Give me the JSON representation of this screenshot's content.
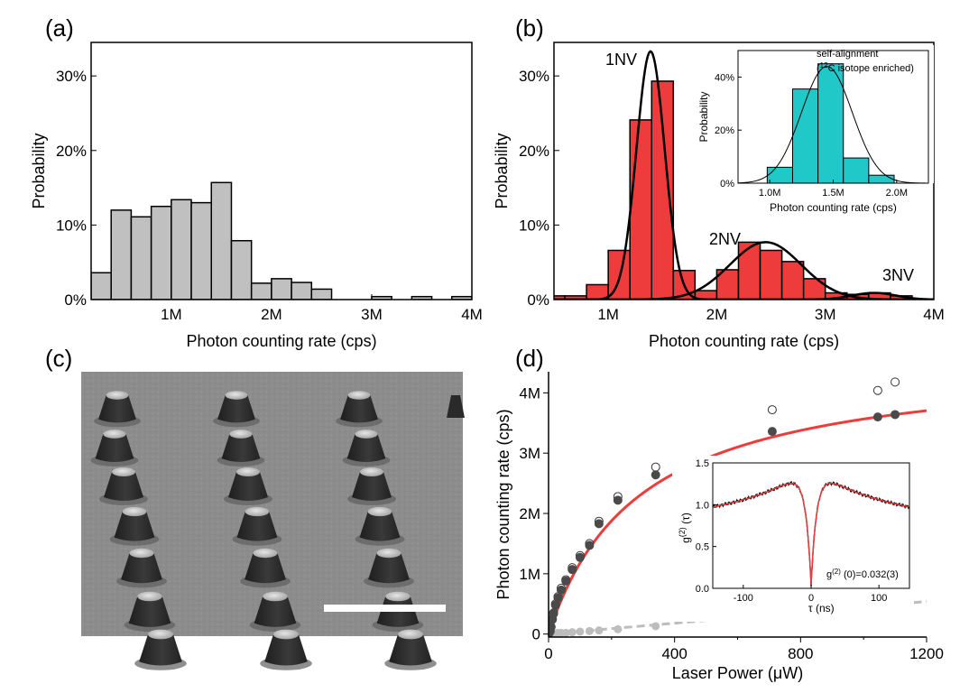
{
  "panel_labels": [
    "(a)",
    "(b)",
    "(c)",
    "(d)"
  ],
  "chart_data": [
    {
      "id": "a",
      "type": "bar",
      "xlabel": "Photon counting rate (cps)",
      "ylabel": "Probability",
      "xlim": [
        0.2,
        4.0
      ],
      "ylim": [
        0,
        0.345
      ],
      "xticks": [
        {
          "v": 1.0,
          "label": "1M"
        },
        {
          "v": 2.0,
          "label": "2M"
        },
        {
          "v": 3.0,
          "label": "3M"
        },
        {
          "v": 4.0,
          "label": "4M"
        }
      ],
      "yticks": [
        {
          "v": 0,
          "label": "0%"
        },
        {
          "v": 0.1,
          "label": "10%"
        },
        {
          "v": 0.2,
          "label": "20%"
        },
        {
          "v": 0.3,
          "label": "30%"
        }
      ],
      "bin_width": 0.2,
      "bin_starts": [
        0.2,
        0.4,
        0.6,
        0.8,
        1.0,
        1.2,
        1.4,
        1.6,
        1.8,
        2.0,
        2.2,
        2.4,
        2.6,
        2.8,
        3.0,
        3.2,
        3.4,
        3.6,
        3.8
      ],
      "values": [
        0.036,
        0.12,
        0.111,
        0.125,
        0.134,
        0.13,
        0.157,
        0.079,
        0.022,
        0.028,
        0.023,
        0.014,
        0,
        0,
        0.004,
        0,
        0.004,
        0,
        0.004
      ],
      "color": "#c0c0c0"
    },
    {
      "id": "b",
      "type": "bar",
      "xlabel": "Photon counting rate (cps)",
      "ylabel": "Probability",
      "xlim": [
        0.5,
        4.0
      ],
      "ylim": [
        0,
        0.345
      ],
      "xticks": [
        {
          "v": 1.0,
          "label": "1M"
        },
        {
          "v": 2.0,
          "label": "2M"
        },
        {
          "v": 3.0,
          "label": "3M"
        },
        {
          "v": 4.0,
          "label": "4M"
        }
      ],
      "yticks": [
        {
          "v": 0,
          "label": "0%"
        },
        {
          "v": 0.1,
          "label": "10%"
        },
        {
          "v": 0.2,
          "label": "20%"
        },
        {
          "v": 0.3,
          "label": "30%"
        }
      ],
      "bin_width": 0.2,
      "bin_starts": [
        0.4,
        0.6,
        0.8,
        1.0,
        1.2,
        1.4,
        1.6,
        1.8,
        2.0,
        2.2,
        2.4,
        2.6,
        2.8,
        3.0,
        3.2,
        3.4,
        3.6
      ],
      "values": [
        0.005,
        0.005,
        0.02,
        0.066,
        0.241,
        0.293,
        0.039,
        0.012,
        0.04,
        0.077,
        0.066,
        0.051,
        0.028,
        0.009,
        0.007,
        0.009,
        0.005
      ],
      "color": "#ee3b3b",
      "fits": [
        {
          "mu": 1.39,
          "sigma": 0.13,
          "amp": 0.333
        },
        {
          "mu": 2.45,
          "sigma": 0.33,
          "amp": 0.077
        },
        {
          "mu": 3.45,
          "sigma": 0.2,
          "amp": 0.009
        }
      ],
      "annotations": [
        "1NV",
        "2NV",
        "3NV"
      ],
      "inset": {
        "type": "bar",
        "xlabel": "Photon counting rate (cps)",
        "ylabel": "Probability",
        "xlim": [
          0.75,
          2.25
        ],
        "ylim": [
          0,
          0.5
        ],
        "xticks": [
          {
            "v": 1.0,
            "label": "1.0M"
          },
          {
            "v": 1.5,
            "label": "1.5M"
          },
          {
            "v": 2.0,
            "label": "2.0M"
          }
        ],
        "yticks": [
          {
            "v": 0,
            "label": "0%"
          },
          {
            "v": 0.2,
            "label": "20%"
          },
          {
            "v": 0.4,
            "label": "40%"
          }
        ],
        "bin_width": 0.2,
        "bin_starts": [
          0.98,
          1.18,
          1.38,
          1.58,
          1.78
        ],
        "values": [
          0.06,
          0.355,
          0.45,
          0.095,
          0.03
        ],
        "color": "#20c8c8",
        "fit": {
          "mu": 1.45,
          "sigma": 0.2,
          "amp": 0.44
        },
        "title_line1": "self-alignment",
        "title_line2_pre": "(",
        "title_line2_sup": "12",
        "title_line2_post": "C isotope enriched)"
      }
    },
    {
      "id": "d",
      "type": "scatter",
      "xlabel": "Laser Power (μW)",
      "ylabel": "Photon counting rate (cps)",
      "xlim": [
        0,
        1200
      ],
      "ylim": [
        -0.05,
        4.35
      ],
      "xticks": [
        {
          "v": 0,
          "label": "0"
        },
        {
          "v": 400,
          "label": "400"
        },
        {
          "v": 800,
          "label": "800"
        },
        {
          "v": 1200,
          "label": "1200"
        }
      ],
      "yticks": [
        {
          "v": 0,
          "label": "0"
        },
        {
          "v": 1,
          "label": "1M"
        },
        {
          "v": 2,
          "label": "2M"
        },
        {
          "v": 3,
          "label": "3M"
        },
        {
          "v": 4,
          "label": "4M"
        }
      ],
      "open": {
        "x": [
          2,
          5,
          8,
          12,
          16,
          22,
          30,
          40,
          55,
          75,
          100,
          130,
          160,
          220,
          340,
          710,
          1045,
          1100
        ],
        "y": [
          0.02,
          0.05,
          0.12,
          0.25,
          0.35,
          0.5,
          0.62,
          0.76,
          0.9,
          1.1,
          1.3,
          1.5,
          1.87,
          2.28,
          2.77,
          3.72,
          4.04,
          4.18
        ]
      },
      "filled": {
        "x": [
          2,
          5,
          8,
          12,
          16,
          22,
          30,
          40,
          55,
          75,
          100,
          130,
          160,
          220,
          340,
          710,
          1045,
          1100
        ],
        "y": [
          0.02,
          0.05,
          0.12,
          0.24,
          0.34,
          0.48,
          0.6,
          0.73,
          0.88,
          1.07,
          1.27,
          1.47,
          1.83,
          2.22,
          2.64,
          3.36,
          3.6,
          3.64
        ]
      },
      "background": {
        "x": [
          2,
          5,
          8,
          12,
          16,
          22,
          30,
          40,
          55,
          75,
          100,
          130,
          160,
          220,
          340,
          710,
          1045,
          1100
        ],
        "y": [
          0.0,
          0.0,
          0.01,
          0.01,
          0.01,
          0.01,
          0.02,
          0.02,
          0.02,
          0.03,
          0.04,
          0.05,
          0.06,
          0.08,
          0.13,
          0.32,
          0.47,
          0.5
        ]
      },
      "saturation_fit": {
        "Iinf": 4.6,
        "Psat": 290
      },
      "background_fit_slope": 0.00045,
      "inset": {
        "type": "line",
        "xlabel": "τ (ns)",
        "ylabel": "g(2) (τ)",
        "xlim": [
          -145,
          145
        ],
        "ylim": [
          0,
          1.5
        ],
        "xticks": [
          {
            "v": -100,
            "label": "-100"
          },
          {
            "v": 0,
            "label": "0"
          },
          {
            "v": 100,
            "label": "100"
          }
        ],
        "yticks": [
          {
            "v": 0,
            "label": "0.0"
          },
          {
            "v": 0.5,
            "label": "0.5"
          },
          {
            "v": 1.0,
            "label": "1.0"
          },
          {
            "v": 1.5,
            "label": "1.5"
          }
        ],
        "g2_zero": 0.032,
        "annotation_pre": "g",
        "annotation_sup": "(2)",
        "annotation_post": "(0)=0.032(3)",
        "ylabel_pre": "g",
        "ylabel_sup": "(2)",
        "ylabel_post": "(τ)",
        "xlabel_text": "τ (ns)"
      }
    }
  ]
}
